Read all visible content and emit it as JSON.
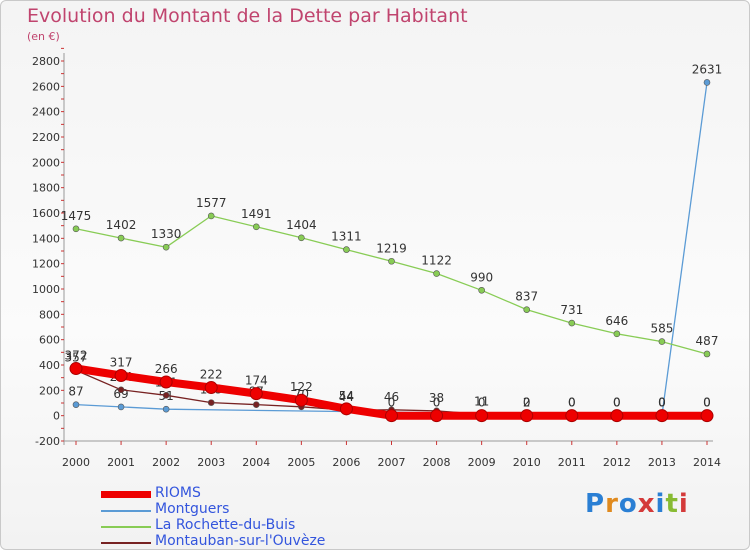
{
  "title": "Evolution du Montant de la Dette par Habitant",
  "unit": "(en €)",
  "logo": "Proxiti",
  "chart_data": {
    "type": "line",
    "x": [
      "2000",
      "2001",
      "2002",
      "2003",
      "2004",
      "2005",
      "2006",
      "2007",
      "2008",
      "2009",
      "2010",
      "2011",
      "2012",
      "2013",
      "2014"
    ],
    "ylim": [
      -200,
      2800
    ],
    "yticks": [
      -200,
      0,
      200,
      400,
      600,
      800,
      1000,
      1200,
      1400,
      1600,
      1800,
      2000,
      2200,
      2400,
      2600,
      2800
    ],
    "grid": false,
    "legend": "bottom-left",
    "series": [
      {
        "name": "RIOMS",
        "color": "#ee0000",
        "values": [
          372,
          317,
          266,
          222,
          174,
          122,
          54,
          0,
          0,
          0,
          0,
          0,
          0,
          0,
          0
        ]
      },
      {
        "name": "Montguers",
        "color": "#5b9bd5",
        "values": [
          87,
          69,
          51,
          null,
          null,
          null,
          null,
          null,
          null,
          null,
          null,
          null,
          null,
          0,
          2631
        ]
      },
      {
        "name": "La Rochette-du-Buis",
        "color": "#88cc55",
        "values": [
          1475,
          1402,
          1330,
          1577,
          1491,
          1404,
          1311,
          1219,
          1122,
          990,
          837,
          731,
          646,
          585,
          487
        ]
      },
      {
        "name": "Montauban-sur-l'Ouvèze",
        "color": "#772222",
        "values": [
          357,
          204,
          161,
          103,
          87,
          70,
          44,
          46,
          38,
          11,
          2,
          0,
          0,
          0,
          0
        ]
      }
    ]
  }
}
